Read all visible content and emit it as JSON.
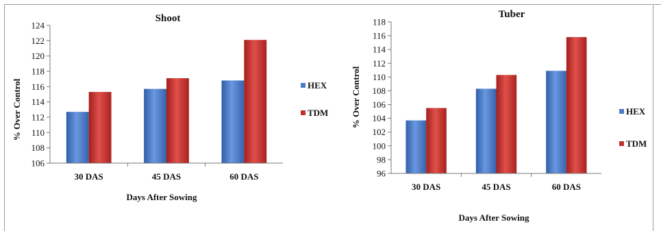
{
  "chart_data": [
    {
      "type": "bar",
      "title": "Shoot",
      "xlabel": "Days After Sowing",
      "ylabel": "% Over Control",
      "categories": [
        "30 DAS",
        "45 DAS",
        "60 DAS"
      ],
      "series": [
        {
          "name": "HEX",
          "values": [
            112.7,
            115.7,
            116.8
          ],
          "color": "#4a7bc8"
        },
        {
          "name": "TDM",
          "values": [
            115.3,
            117.1,
            122.1
          ],
          "color": "#c0302e"
        }
      ],
      "ylim": [
        106,
        124
      ],
      "yticks": [
        "106",
        "108",
        "110",
        "112",
        "114",
        "116",
        "118",
        "120",
        "122",
        "124"
      ],
      "grid": false,
      "legend_position": "right"
    },
    {
      "type": "bar",
      "title": "Tuber",
      "xlabel": "Days After Sowing",
      "ylabel": "% Over Control",
      "categories": [
        "30 DAS",
        "45 DAS",
        "60 DAS"
      ],
      "series": [
        {
          "name": "HEX",
          "values": [
            103.7,
            108.3,
            110.9
          ],
          "color": "#4a7bc8"
        },
        {
          "name": "TDM",
          "values": [
            105.5,
            110.3,
            115.8
          ],
          "color": "#c0302e"
        }
      ],
      "ylim": [
        96,
        118
      ],
      "yticks": [
        "96",
        "98",
        "100",
        "102",
        "104",
        "106",
        "108",
        "110",
        "112",
        "114",
        "116",
        "118"
      ],
      "grid": false,
      "legend_position": "right"
    }
  ]
}
